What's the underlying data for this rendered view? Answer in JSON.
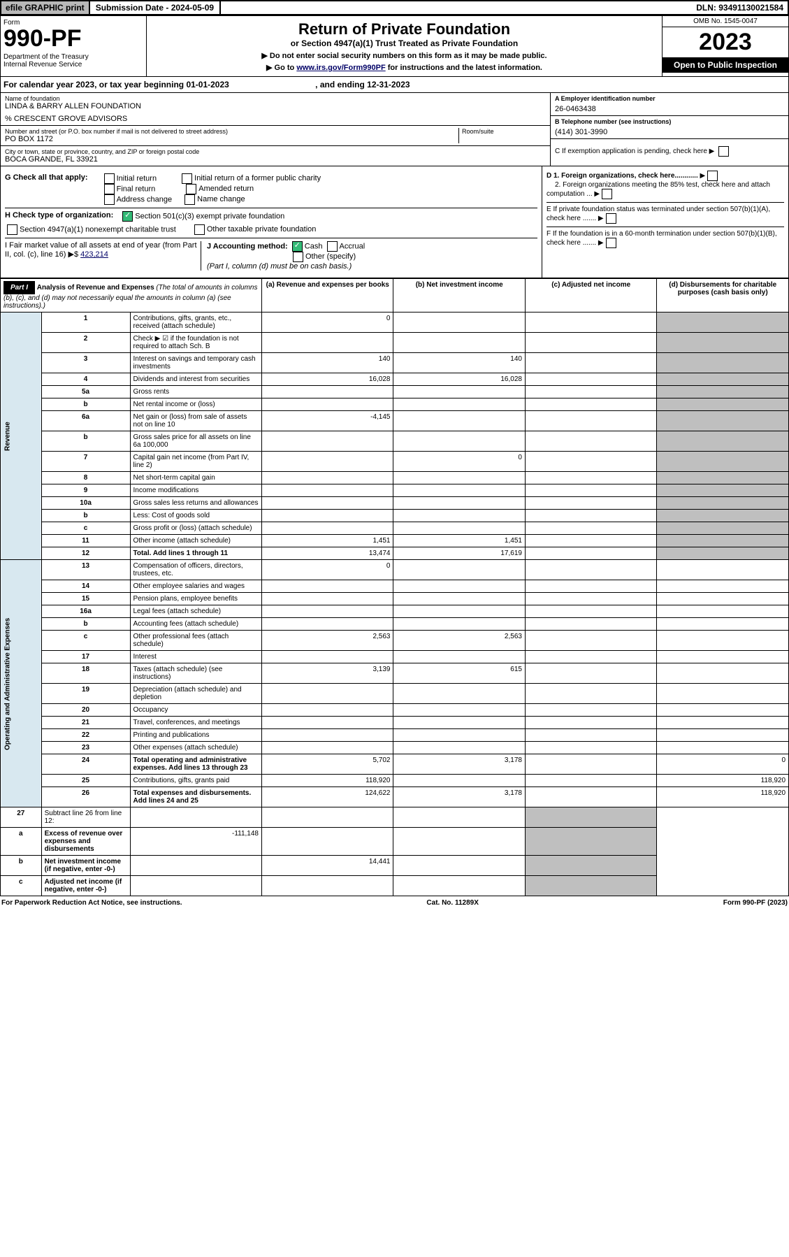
{
  "topbar": {
    "efile": "efile GRAPHIC print",
    "sub": "Submission Date - 2024-05-09",
    "dln": "DLN: 93491130021584"
  },
  "hdr": {
    "form": "Form",
    "num": "990-PF",
    "dept": "Department of the Treasury\nInternal Revenue Service",
    "title": "Return of Private Foundation",
    "sub": "or Section 4947(a)(1) Trust Treated as Private Foundation",
    "note1": "▶ Do not enter social security numbers on this form as it may be made public.",
    "note2": "▶ Go to www.irs.gov/Form990PF for instructions and the latest information.",
    "omb": "OMB No. 1545-0047",
    "year": "2023",
    "open": "Open to Public Inspection"
  },
  "cal": {
    "text": "For calendar year 2023, or tax year beginning 01-01-2023",
    "end": ", and ending 12-31-2023"
  },
  "name": {
    "lbl": "Name of foundation",
    "val": "LINDA & BARRY ALLEN FOUNDATION",
    "co": "% CRESCENT GROVE ADVISORS"
  },
  "addr": {
    "lbl": "Number and street (or P.O. box number if mail is not delivered to street address)",
    "val": "PO BOX 1172",
    "room": "Room/suite"
  },
  "city": {
    "lbl": "City or town, state or province, country, and ZIP or foreign postal code",
    "val": "BOCA GRANDE, FL  33921"
  },
  "ein": {
    "lbl": "A Employer identification number",
    "val": "26-0463438"
  },
  "tel": {
    "lbl": "B Telephone number (see instructions)",
    "val": "(414) 301-3990"
  },
  "C": "C If exemption application is pending, check here",
  "D1": "D 1. Foreign organizations, check here............",
  "D2": "2. Foreign organizations meeting the 85% test, check here and attach computation ...",
  "E": "E  If private foundation status was terminated under section 507(b)(1)(A), check here .......",
  "F": "F  If the foundation is in a 60-month termination under section 507(b)(1)(B), check here .......",
  "G": {
    "lbl": "G Check all that apply:",
    "o1": "Initial return",
    "o2": "Final return",
    "o3": "Address change",
    "o4": "Initial return of a former public charity",
    "o5": "Amended return",
    "o6": "Name change"
  },
  "H": {
    "lbl": "H Check type of organization:",
    "o1": "Section 501(c)(3) exempt private foundation",
    "o2": "Section 4947(a)(1) nonexempt charitable trust",
    "o3": "Other taxable private foundation"
  },
  "I": {
    "lbl": "I Fair market value of all assets at end of year (from Part II, col. (c), line 16)",
    "val": "423,214"
  },
  "J": {
    "lbl": "J Accounting method:",
    "o1": "Cash",
    "o2": "Accrual",
    "o3": "Other (specify)",
    "note": "(Part I, column (d) must be on cash basis.)"
  },
  "part1": {
    "lbl": "Part I",
    "title": "Analysis of Revenue and Expenses",
    "note": "(The total of amounts in columns (b), (c), and (d) may not necessarily equal the amounts in column (a) (see instructions).)",
    "ca": "(a) Revenue and expenses per books",
    "cb": "(b) Net investment income",
    "cc": "(c) Adjusted net income",
    "cd": "(d) Disbursements for charitable purposes (cash basis only)"
  },
  "sideRev": "Revenue",
  "sideExp": "Operating and Administrative Expenses",
  "rows": [
    {
      "n": "1",
      "d": "Contributions, gifts, grants, etc., received (attach schedule)",
      "a": "0"
    },
    {
      "n": "2",
      "d": "Check ▶ ☑ if the foundation is not required to attach Sch. B"
    },
    {
      "n": "3",
      "d": "Interest on savings and temporary cash investments",
      "a": "140",
      "b": "140"
    },
    {
      "n": "4",
      "d": "Dividends and interest from securities",
      "a": "16,028",
      "b": "16,028"
    },
    {
      "n": "5a",
      "d": "Gross rents"
    },
    {
      "n": "b",
      "d": "Net rental income or (loss)"
    },
    {
      "n": "6a",
      "d": "Net gain or (loss) from sale of assets not on line 10",
      "a": "-4,145"
    },
    {
      "n": "b",
      "d": "Gross sales price for all assets on line 6a              100,000"
    },
    {
      "n": "7",
      "d": "Capital gain net income (from Part IV, line 2)",
      "b": "0"
    },
    {
      "n": "8",
      "d": "Net short-term capital gain"
    },
    {
      "n": "9",
      "d": "Income modifications"
    },
    {
      "n": "10a",
      "d": "Gross sales less returns and allowances"
    },
    {
      "n": "b",
      "d": "Less: Cost of goods sold"
    },
    {
      "n": "c",
      "d": "Gross profit or (loss) (attach schedule)"
    },
    {
      "n": "11",
      "d": "Other income (attach schedule)",
      "a": "1,451",
      "b": "1,451"
    },
    {
      "n": "12",
      "d": "Total. Add lines 1 through 11",
      "a": "13,474",
      "b": "17,619",
      "bold": true
    }
  ],
  "erows": [
    {
      "n": "13",
      "d": "Compensation of officers, directors, trustees, etc.",
      "a": "0"
    },
    {
      "n": "14",
      "d": "Other employee salaries and wages"
    },
    {
      "n": "15",
      "d": "Pension plans, employee benefits"
    },
    {
      "n": "16a",
      "d": "Legal fees (attach schedule)"
    },
    {
      "n": "b",
      "d": "Accounting fees (attach schedule)"
    },
    {
      "n": "c",
      "d": "Other professional fees (attach schedule)",
      "a": "2,563",
      "b": "2,563"
    },
    {
      "n": "17",
      "d": "Interest"
    },
    {
      "n": "18",
      "d": "Taxes (attach schedule) (see instructions)",
      "a": "3,139",
      "b": "615"
    },
    {
      "n": "19",
      "d": "Depreciation (attach schedule) and depletion"
    },
    {
      "n": "20",
      "d": "Occupancy"
    },
    {
      "n": "21",
      "d": "Travel, conferences, and meetings"
    },
    {
      "n": "22",
      "d": "Printing and publications"
    },
    {
      "n": "23",
      "d": "Other expenses (attach schedule)"
    },
    {
      "n": "24",
      "d": "Total operating and administrative expenses. Add lines 13 through 23",
      "a": "5,702",
      "b": "3,178",
      "dd": "0",
      "bold": true
    },
    {
      "n": "25",
      "d": "Contributions, gifts, grants paid",
      "a": "118,920",
      "dd": "118,920"
    },
    {
      "n": "26",
      "d": "Total expenses and disbursements. Add lines 24 and 25",
      "a": "124,622",
      "b": "3,178",
      "dd": "118,920",
      "bold": true
    }
  ],
  "nrows": [
    {
      "n": "27",
      "d": "Subtract line 26 from line 12:"
    },
    {
      "n": "a",
      "d": "Excess of revenue over expenses and disbursements",
      "a": "-111,148",
      "bold": true
    },
    {
      "n": "b",
      "d": "Net investment income (if negative, enter -0-)",
      "b": "14,441",
      "bold": true
    },
    {
      "n": "c",
      "d": "Adjusted net income (if negative, enter -0-)",
      "bold": true
    }
  ],
  "foot": {
    "l": "For Paperwork Reduction Act Notice, see instructions.",
    "m": "Cat. No. 11289X",
    "r": "Form 990-PF (2023)"
  }
}
